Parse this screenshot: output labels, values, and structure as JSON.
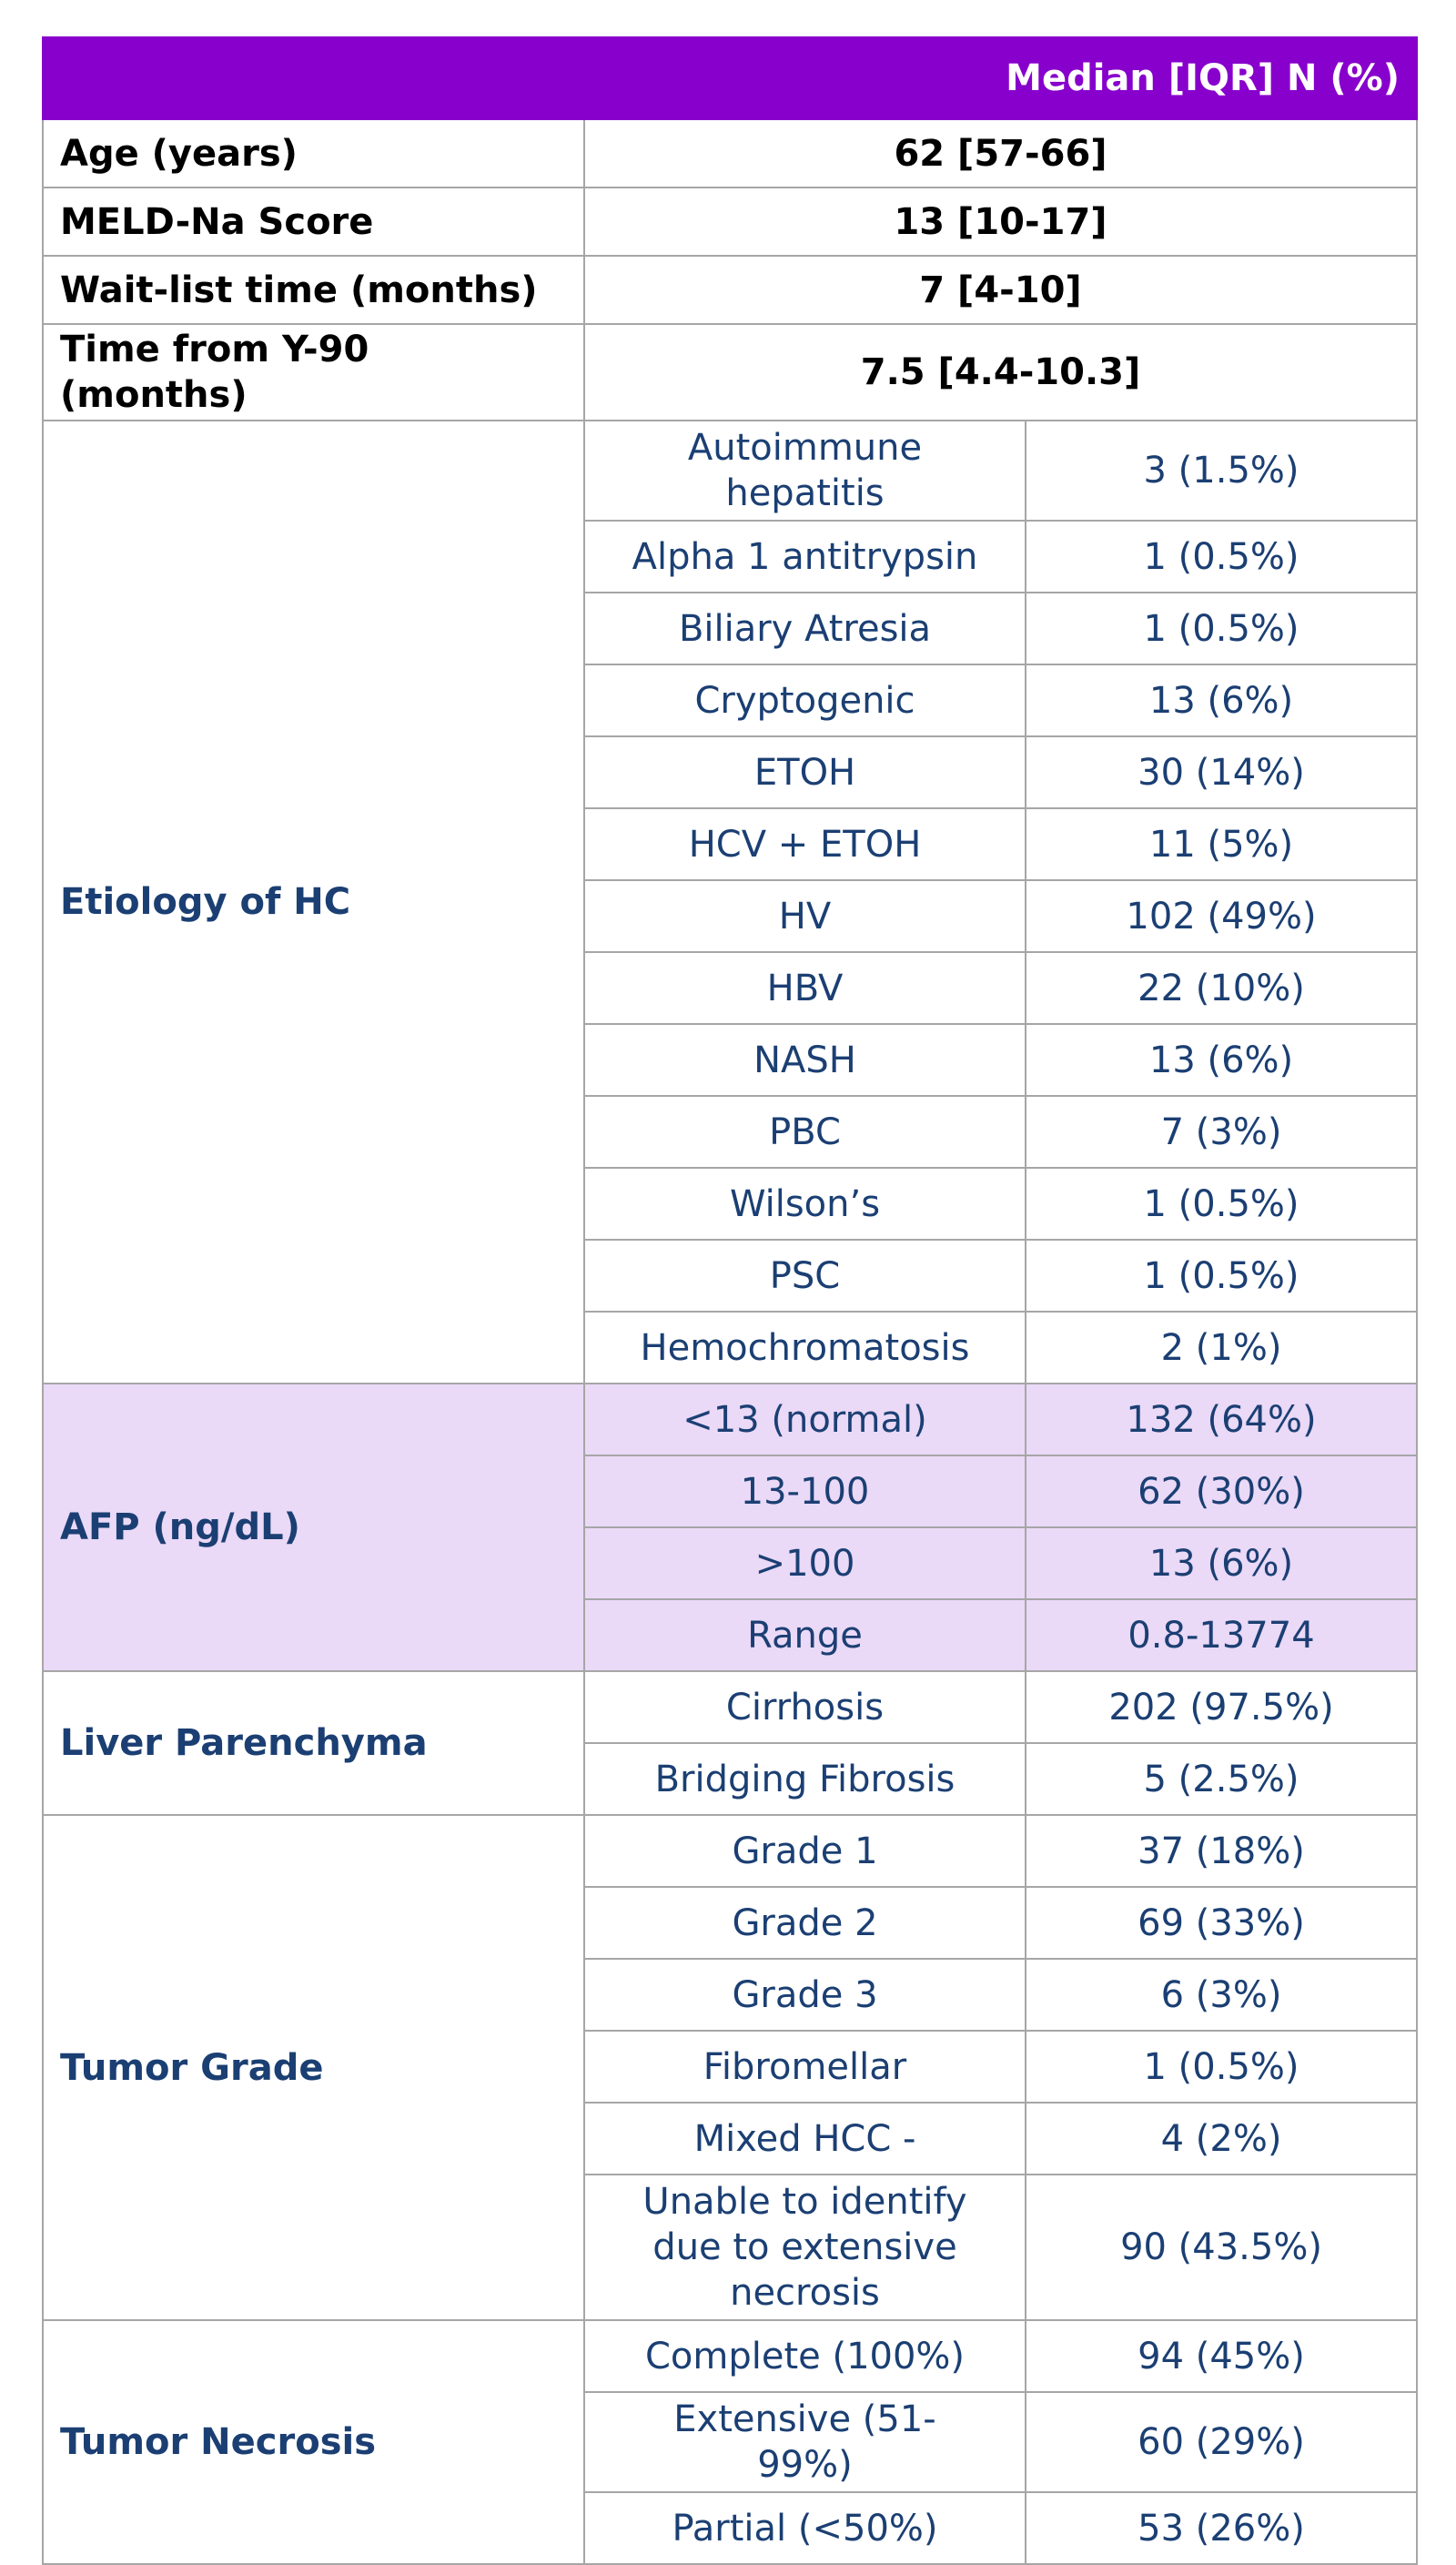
{
  "table": {
    "header": "Median [IQR]  N (%)",
    "rows": [
      {
        "label": "Age (years)",
        "value": "62 [57-66]"
      },
      {
        "label": "MELD-Na Score",
        "value": "13 [10-17]"
      },
      {
        "label": "Wait-list time (months)",
        "value": "7 [4-10]"
      },
      {
        "label": "Time from Y-90 (months)",
        "value": "7.5 [4.4-10.3]"
      }
    ],
    "groups": [
      {
        "label": "Etiology of HC",
        "shaded": false,
        "rows": [
          [
            "Autoimmune hepatitis",
            "3 (1.5%)"
          ],
          [
            "Alpha 1 antitrypsin",
            "1 (0.5%)"
          ],
          [
            "Biliary Atresia",
            "1 (0.5%)"
          ],
          [
            "Cryptogenic",
            "13 (6%)"
          ],
          [
            "ETOH",
            "30 (14%)"
          ],
          [
            "HCV + ETOH",
            "11 (5%)"
          ],
          [
            "HV",
            "102 (49%)"
          ],
          [
            "HBV",
            "22 (10%)"
          ],
          [
            "NASH",
            "13 (6%)"
          ],
          [
            "PBC",
            "7 (3%)"
          ],
          [
            "Wilson’s",
            "1 (0.5%)"
          ],
          [
            "PSC",
            "1 (0.5%)"
          ],
          [
            "Hemochromatosis",
            "2 (1%)"
          ]
        ]
      },
      {
        "label": "AFP (ng/dL)",
        "shaded": true,
        "rows": [
          [
            "<13 (normal)",
            "132 (64%)"
          ],
          [
            "13-100",
            "62 (30%)"
          ],
          [
            ">100",
            "13 (6%)"
          ],
          [
            "Range",
            "0.8-13774"
          ]
        ]
      },
      {
        "label": "Liver Parenchyma",
        "shaded": false,
        "rows": [
          [
            "Cirrhosis",
            "202 (97.5%)"
          ],
          [
            "Bridging Fibrosis",
            "5 (2.5%)"
          ]
        ]
      },
      {
        "label": "Tumor Grade",
        "shaded": false,
        "rows": [
          [
            "Grade 1",
            "37 (18%)"
          ],
          [
            "Grade 2",
            "69 (33%)"
          ],
          [
            "Grade 3",
            "6 (3%)"
          ],
          [
            "Fibromellar",
            "1 (0.5%)"
          ],
          [
            "Mixed HCC -",
            "4 (2%)"
          ],
          [
            "Unable to identify due to extensive necrosis",
            "90 (43.5%)"
          ]
        ]
      },
      {
        "label": "Tumor Necrosis",
        "shaded": false,
        "rows": [
          [
            "Complete (100%)",
            "94 (45%)"
          ],
          [
            "Extensive (51-99%)",
            "60 (29%)"
          ],
          [
            "Partial (<50%)",
            "53 (26%)"
          ]
        ]
      }
    ]
  }
}
